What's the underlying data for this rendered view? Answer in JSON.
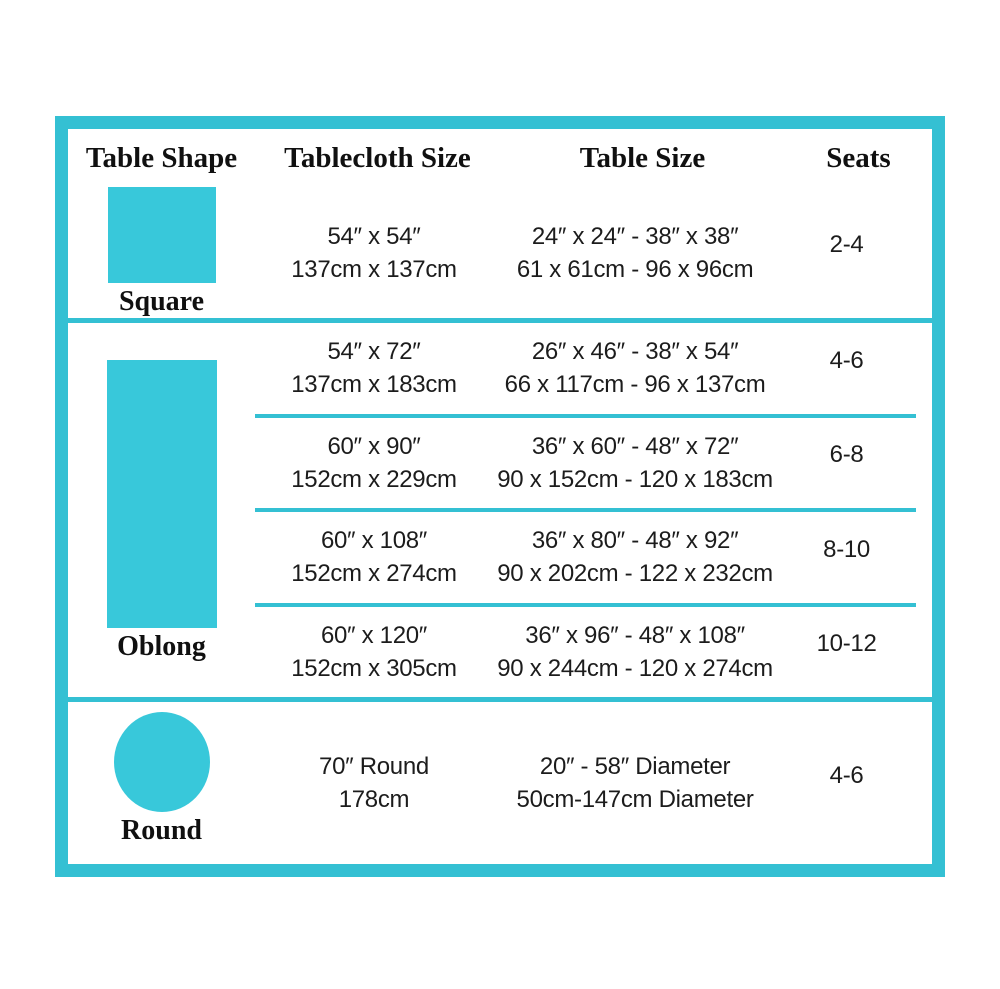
{
  "theme": {
    "accent_color": "#34c0d3",
    "shape_color": "#38c8da",
    "text_color": "#1c1c1c"
  },
  "header": {
    "col_shape": "Table Shape",
    "col_tablecloth": "Tablecloth Size",
    "col_table": "Table Size",
    "col_seats": "Seats"
  },
  "sections": [
    {
      "shape": "square",
      "shape_label": "Square",
      "rows": [
        {
          "tablecloth": [
            "54″ x 54″",
            "137cm x 137cm"
          ],
          "table": [
            "24″ x 24″ - 38″ x 38″",
            "61 x 61cm - 96 x 96cm"
          ],
          "seats": "2-4"
        }
      ]
    },
    {
      "shape": "oblong",
      "shape_label": "Oblong",
      "rows": [
        {
          "tablecloth": [
            "54″ x 72″",
            "137cm x 183cm"
          ],
          "table": [
            "26″ x 46″ - 38″ x 54″",
            "66 x 117cm - 96 x 137cm"
          ],
          "seats": "4-6"
        },
        {
          "tablecloth": [
            "60″ x 90″",
            "152cm x 229cm"
          ],
          "table": [
            "36″ x 60″ - 48″ x 72″",
            "90 x 152cm - 120 x 183cm"
          ],
          "seats": "6-8"
        },
        {
          "tablecloth": [
            "60″ x 108″",
            "152cm x 274cm"
          ],
          "table": [
            "36″ x 80″ - 48″ x 92″",
            "90 x 202cm - 122 x 232cm"
          ],
          "seats": "8-10"
        },
        {
          "tablecloth": [
            "60″ x 120″",
            "152cm x 305cm"
          ],
          "table": [
            "36″ x 96″ - 48″ x 108″",
            "90 x 244cm - 120 x 274cm"
          ],
          "seats": "10-12"
        }
      ]
    },
    {
      "shape": "round",
      "shape_label": "Round",
      "rows": [
        {
          "tablecloth": [
            "70″ Round",
            "178cm"
          ],
          "table": [
            "20″ - 58″ Diameter",
            "50cm-147cm Diameter"
          ],
          "seats": "4-6"
        }
      ]
    }
  ]
}
